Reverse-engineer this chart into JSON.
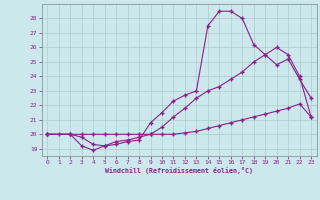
{
  "xlabel": "Windchill (Refroidissement éolien,°C)",
  "xlim": [
    -0.5,
    23.5
  ],
  "ylim": [
    18.5,
    29.0
  ],
  "xticks": [
    0,
    1,
    2,
    3,
    4,
    5,
    6,
    7,
    8,
    9,
    10,
    11,
    12,
    13,
    14,
    15,
    16,
    17,
    18,
    19,
    20,
    21,
    22,
    23
  ],
  "yticks": [
    19,
    20,
    21,
    22,
    23,
    24,
    25,
    26,
    27,
    28
  ],
  "bg_color": "#cce8ec",
  "line_color": "#882288",
  "grid_color": "#aacccc",
  "line1_x": [
    0,
    1,
    2,
    3,
    4,
    5,
    6,
    7,
    8,
    9,
    10,
    11,
    12,
    13,
    14,
    15,
    16,
    17,
    18,
    19,
    20,
    21,
    22,
    23
  ],
  "line1_y": [
    20.0,
    20.0,
    20.0,
    20.0,
    20.0,
    20.0,
    20.0,
    20.0,
    20.0,
    20.0,
    20.0,
    20.0,
    20.1,
    20.2,
    20.4,
    20.6,
    20.8,
    21.0,
    21.2,
    21.4,
    21.6,
    21.8,
    22.1,
    21.2
  ],
  "line2_x": [
    0,
    2,
    3,
    4,
    5,
    6,
    7,
    8,
    9,
    10,
    11,
    12,
    13,
    14,
    15,
    16,
    17,
    18,
    19,
    20,
    21,
    22,
    23
  ],
  "line2_y": [
    20.0,
    20.0,
    19.8,
    19.3,
    19.2,
    19.3,
    19.5,
    19.6,
    20.8,
    21.5,
    22.3,
    22.7,
    23.0,
    27.5,
    28.5,
    28.5,
    28.0,
    26.2,
    25.5,
    24.8,
    25.2,
    23.8,
    22.5
  ],
  "line3_x": [
    0,
    2,
    3,
    4,
    5,
    6,
    7,
    8,
    9,
    10,
    11,
    12,
    13,
    14,
    15,
    16,
    17,
    18,
    19,
    20,
    21,
    22,
    23
  ],
  "line3_y": [
    20.0,
    20.0,
    19.2,
    18.9,
    19.2,
    19.5,
    19.6,
    19.8,
    20.0,
    20.5,
    21.2,
    21.8,
    22.5,
    23.0,
    23.3,
    23.8,
    24.3,
    25.0,
    25.5,
    26.0,
    25.5,
    24.0,
    21.2
  ]
}
